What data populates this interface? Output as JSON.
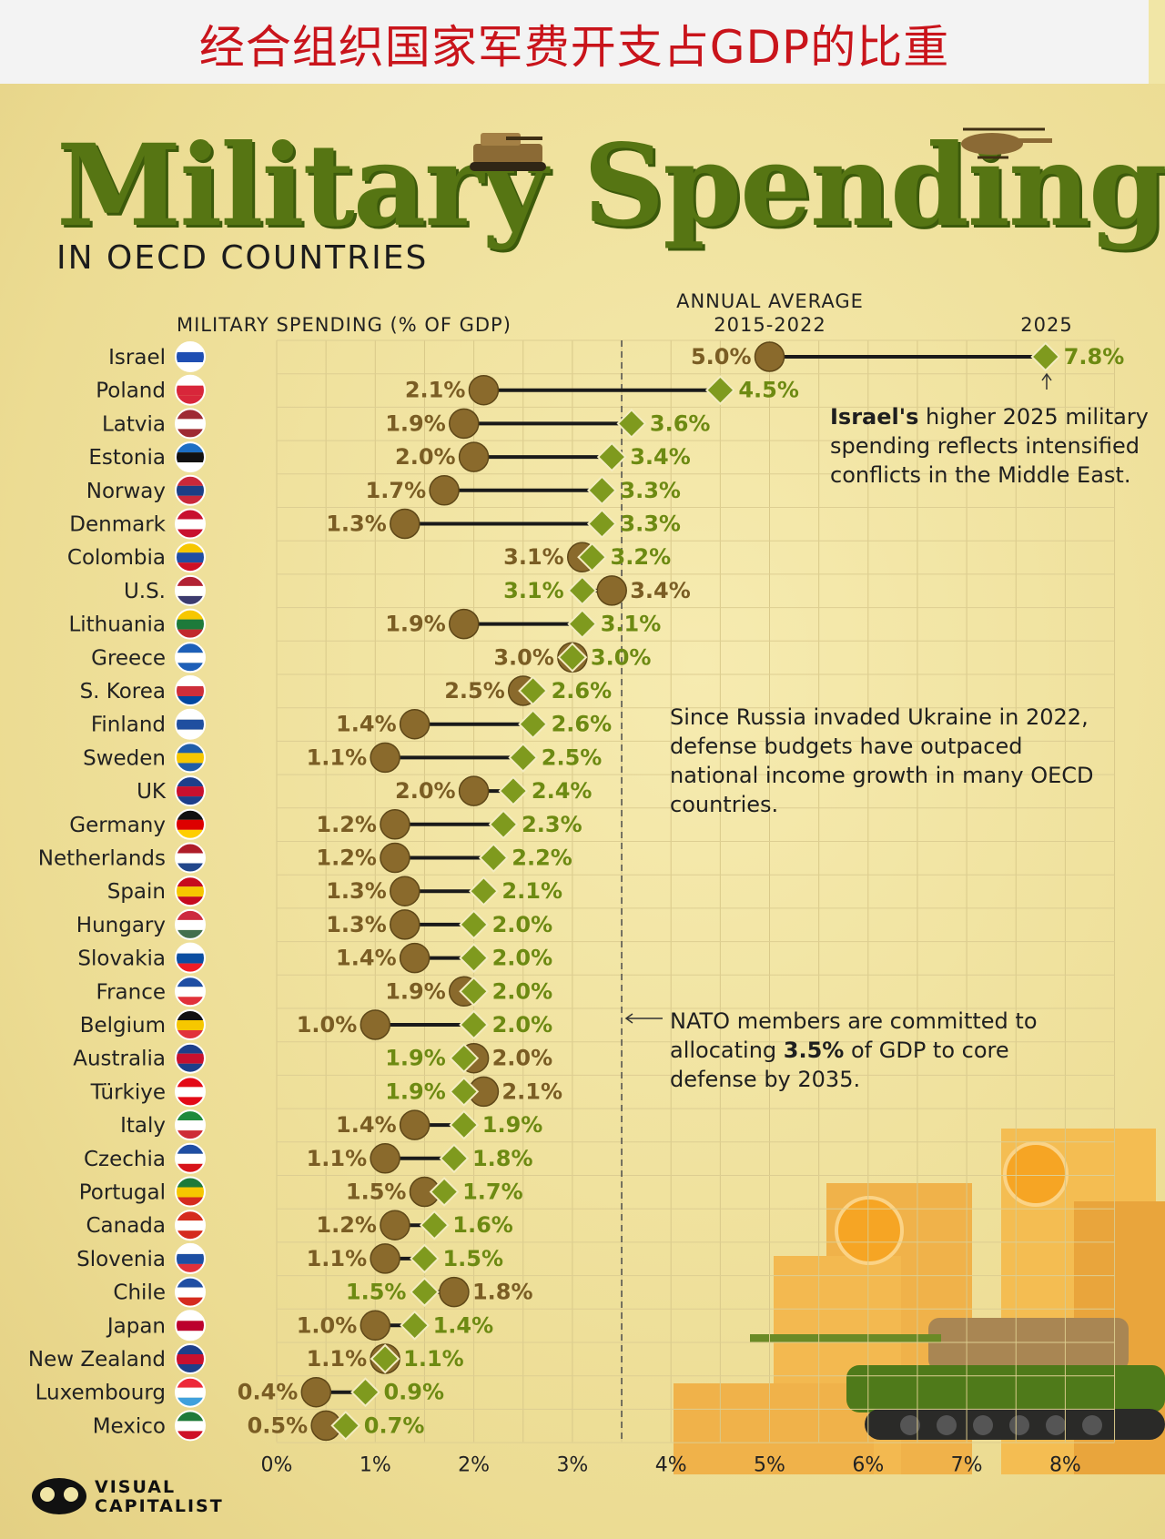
{
  "banner": {
    "text": "经合组织国家军费开支占GDP的比重"
  },
  "header": {
    "title": "Military Spending",
    "subtitle": "IN OECD COUNTRIES",
    "col_left": "MILITARY SPENDING (% OF GDP)",
    "col_mid_1": "ANNUAL AVERAGE",
    "col_mid_2": "2015-2022",
    "col_right": "2025"
  },
  "notes": {
    "israel_bold": "Israel's",
    "israel_rest": " higher 2025 military spending reflects intensified conflicts in the Middle East.",
    "ukraine": "Since Russia invaded Ukraine in 2022, defense budgets have outpaced national income growth in many OECD countries.",
    "nato_pre": "NATO members are committed to allocating ",
    "nato_bold": "3.5%",
    "nato_post": " of GDP to core defense by 2035."
  },
  "brand": {
    "line1": "VISUAL",
    "line2": "CAPITALIST"
  },
  "colors": {
    "avg_marker": "#8a6a2c",
    "marker_2025": "#7f9a1e",
    "label_2025": "#6d8a12",
    "title": "#567513",
    "banner_text": "#c9141b",
    "nato_line": "#4a4a4a"
  },
  "chart_data": {
    "type": "dumbbell",
    "x_axis": {
      "ticks": [
        "0%",
        "1%",
        "2%",
        "3%",
        "4%",
        "5%",
        "6%",
        "7%",
        "8%"
      ],
      "range": [
        0,
        8.5
      ],
      "grid": true
    },
    "reference_line": 3.5,
    "series": [
      {
        "name": "2015-2022",
        "values": [
          5.0,
          2.1,
          1.9,
          2.0,
          1.7,
          1.3,
          3.1,
          3.4,
          1.9,
          3.0,
          2.5,
          1.4,
          1.1,
          2.0,
          1.2,
          1.2,
          1.3,
          1.3,
          1.4,
          1.9,
          1.0,
          2.0,
          2.1,
          1.4,
          1.1,
          1.5,
          1.2,
          1.1,
          1.8,
          1.0,
          1.1,
          0.4,
          0.5
        ]
      },
      {
        "name": "2025",
        "values": [
          7.8,
          4.5,
          3.6,
          3.4,
          3.3,
          3.3,
          3.2,
          3.1,
          3.1,
          3.0,
          2.6,
          2.6,
          2.5,
          2.4,
          2.3,
          2.2,
          2.1,
          2.0,
          2.0,
          2.0,
          2.0,
          1.9,
          1.9,
          1.9,
          1.8,
          1.7,
          1.6,
          1.5,
          1.5,
          1.4,
          1.1,
          0.9,
          0.7
        ]
      }
    ],
    "categories": [
      "Israel",
      "Poland",
      "Latvia",
      "Estonia",
      "Norway",
      "Denmark",
      "Colombia",
      "U.S.",
      "Lithuania",
      "Greece",
      "S. Korea",
      "Finland",
      "Sweden",
      "UK",
      "Germany",
      "Netherlands",
      "Spain",
      "Hungary",
      "Slovakia",
      "France",
      "Belgium",
      "Australia",
      "Türkiye",
      "Italy",
      "Czechia",
      "Portugal",
      "Canada",
      "Slovenia",
      "Chile",
      "Japan",
      "New Zealand",
      "Luxembourg",
      "Mexico"
    ],
    "avg_labels": [
      "5.0%",
      "2.1%",
      "1.9%",
      "2.0%",
      "1.7%",
      "1.3%",
      "3.1%",
      "3.4%",
      "1.9%",
      "3.0%",
      "2.5%",
      "1.4%",
      "1.1%",
      "2.0%",
      "1.2%",
      "1.2%",
      "1.3%",
      "1.3%",
      "1.4%",
      "1.9%",
      "1.0%",
      "2.0%",
      "2.1%",
      "1.4%",
      "1.1%",
      "1.5%",
      "1.2%",
      "1.1%",
      "1.8%",
      "1.0%",
      "1.1%",
      "0.4%",
      "0.5%"
    ],
    "labels_2025": [
      "7.8%",
      "4.5%",
      "3.6%",
      "3.4%",
      "3.3%",
      "3.3%",
      "3.2%",
      "3.1%",
      "3.1%",
      "3.0%",
      "2.6%",
      "2.6%",
      "2.5%",
      "2.4%",
      "2.3%",
      "2.2%",
      "2.1%",
      "2.0%",
      "2.0%",
      "2.0%",
      "2.0%",
      "1.9%",
      "1.9%",
      "1.9%",
      "1.8%",
      "1.7%",
      "1.6%",
      "1.5%",
      "1.5%",
      "1.4%",
      "1.1%",
      "0.9%",
      "0.7%"
    ],
    "flags": [
      [
        "#ffffff",
        "#1f4fb3",
        "#ffffff"
      ],
      [
        "#ffffff",
        "#d8263a",
        "#d8263a"
      ],
      [
        "#9e2a33",
        "#ffffff",
        "#9e2a33"
      ],
      [
        "#1d6fc4",
        "#111111",
        "#ffffff"
      ],
      [
        "#c9283a",
        "#1b3e85",
        "#c9283a"
      ],
      [
        "#c8102e",
        "#ffffff",
        "#c8102e"
      ],
      [
        "#f6c700",
        "#1f4ea3",
        "#ce1126"
      ],
      [
        "#b22234",
        "#ffffff",
        "#3c3b6e"
      ],
      [
        "#f6c700",
        "#1d7a3a",
        "#c1272d"
      ],
      [
        "#1d5fb8",
        "#ffffff",
        "#1d5fb8"
      ],
      [
        "#ffffff",
        "#cd2e3a",
        "#0047a0"
      ],
      [
        "#ffffff",
        "#1f4fa0",
        "#ffffff"
      ],
      [
        "#1f5ea8",
        "#f6c700",
        "#1f5ea8"
      ],
      [
        "#1d3f8a",
        "#c8102e",
        "#1d3f8a"
      ],
      [
        "#111111",
        "#dd0000",
        "#ffce00"
      ],
      [
        "#ae1c28",
        "#ffffff",
        "#21468b"
      ],
      [
        "#c60b1e",
        "#f6c700",
        "#c60b1e"
      ],
      [
        "#cd2a3e",
        "#ffffff",
        "#436f4d"
      ],
      [
        "#ffffff",
        "#0b4ea2",
        "#ee1c25"
      ],
      [
        "#1f4ea3",
        "#ffffff",
        "#e1313a"
      ],
      [
        "#111111",
        "#f6c700",
        "#e1313a"
      ],
      [
        "#1d3f8a",
        "#c8102e",
        "#1d3f8a"
      ],
      [
        "#e30a17",
        "#ffffff",
        "#e30a17"
      ],
      [
        "#1d8a3c",
        "#ffffff",
        "#ce2b37"
      ],
      [
        "#1f4ea3",
        "#ffffff",
        "#d7141a"
      ],
      [
        "#1d7a3a",
        "#f6c700",
        "#d52b1e"
      ],
      [
        "#d52b1e",
        "#ffffff",
        "#d52b1e"
      ],
      [
        "#ffffff",
        "#1d4fa3",
        "#e1313a"
      ],
      [
        "#1f4ea3",
        "#ffffff",
        "#d52b1e"
      ],
      [
        "#ffffff",
        "#bc002d",
        "#ffffff"
      ],
      [
        "#1d3f8a",
        "#c8102e",
        "#1d3f8a"
      ],
      [
        "#ed2939",
        "#ffffff",
        "#3fa0dc"
      ],
      [
        "#1d7a3a",
        "#ffffff",
        "#ce1126"
      ]
    ]
  }
}
